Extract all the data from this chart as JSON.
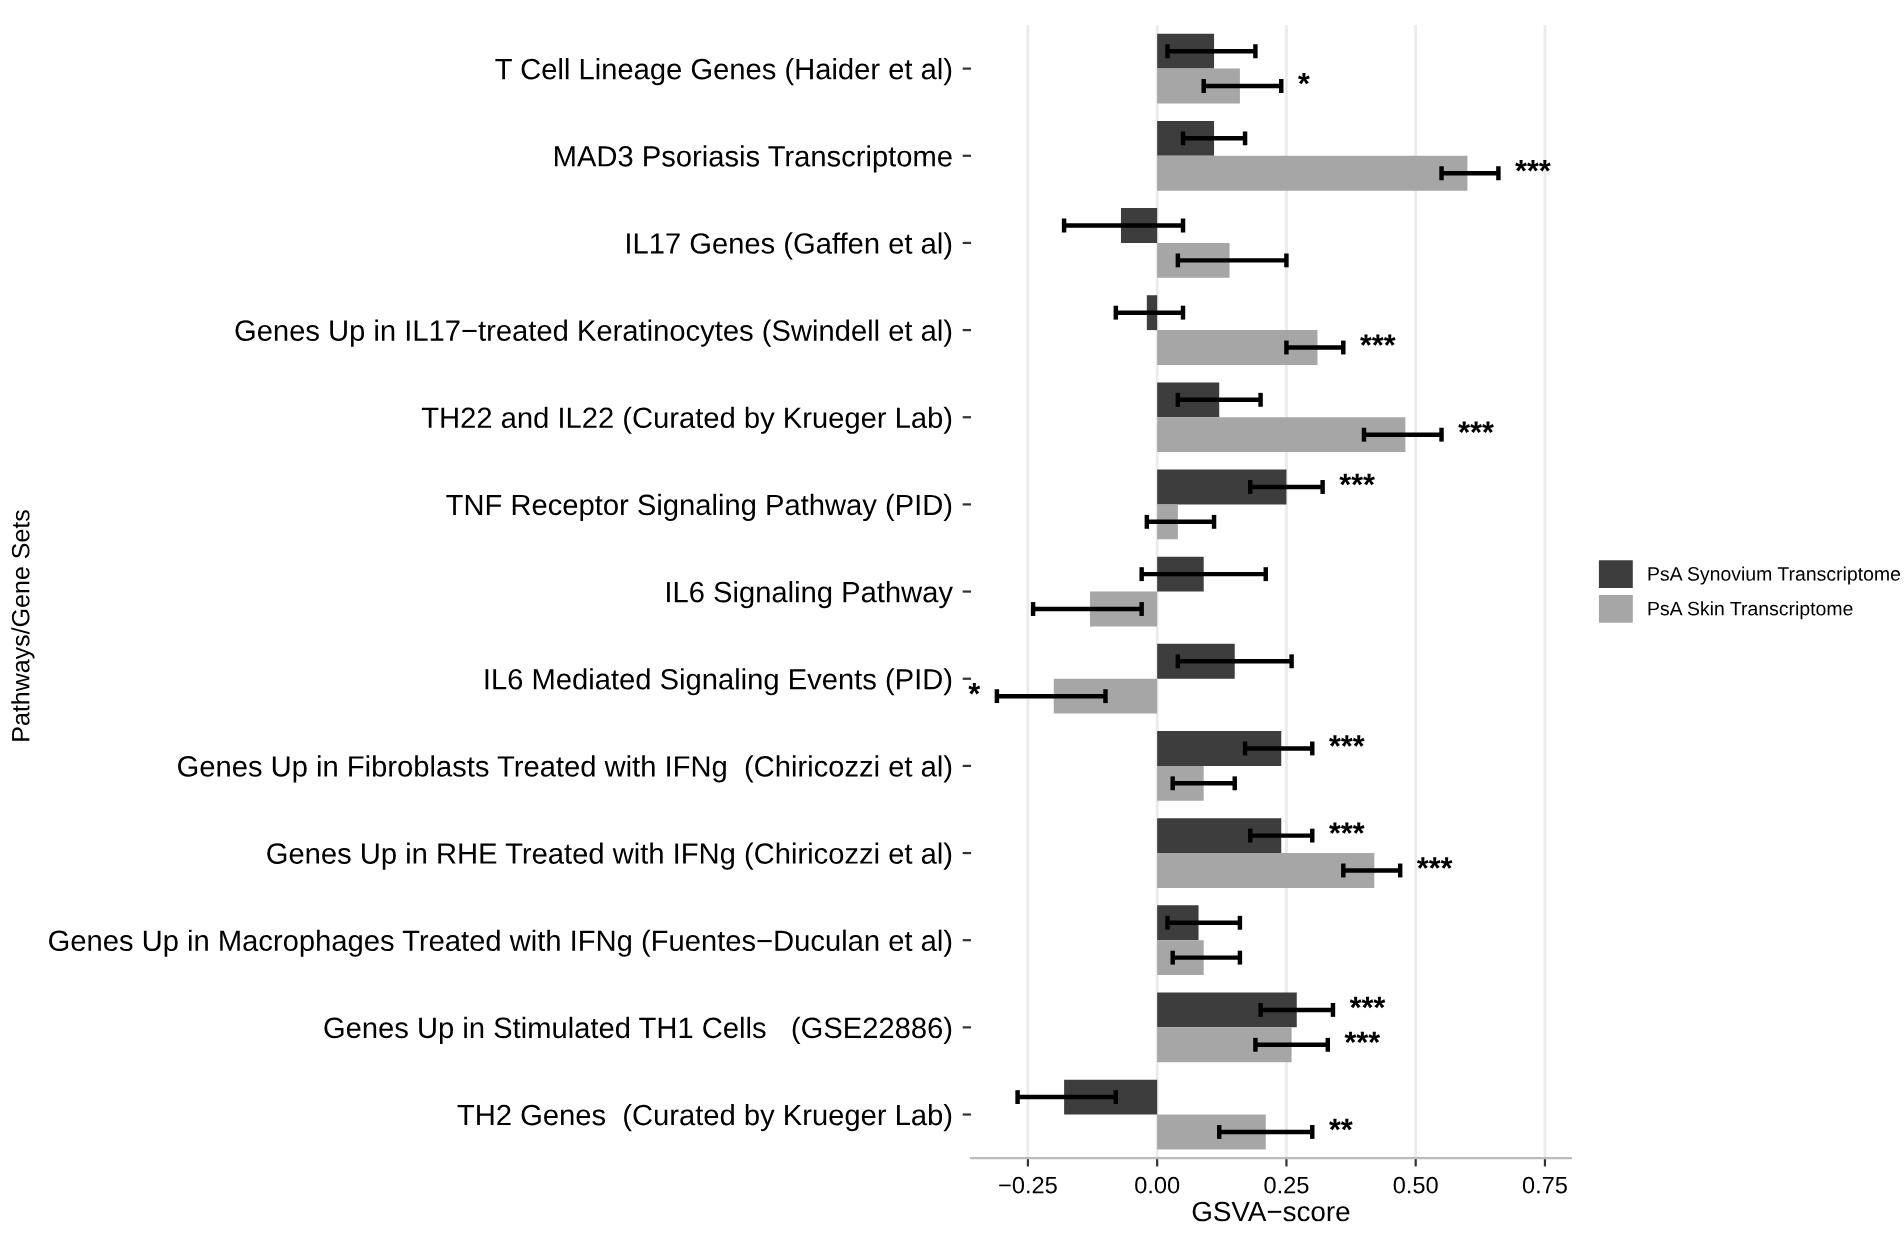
{
  "chart_data": {
    "type": "bar",
    "orientation": "horizontal",
    "xlabel": "GSVA−score",
    "ylabel": "Pathways/Gene Sets",
    "categories": [
      "T Cell Lineage Genes (Haider et al)",
      "MAD3 Psoriasis Transcriptome",
      "IL17 Genes (Gaffen et al)",
      "Genes Up in IL17−treated Keratinocytes (Swindell et al)",
      "TH22 and IL22 (Curated by Krueger Lab)",
      "TNF Receptor Signaling Pathway (PID)",
      "IL6 Signaling Pathway",
      "IL6 Mediated Signaling Events (PID)",
      "Genes Up in Fibroblasts Treated with IFNg  (Chiricozzi et al)",
      "Genes Up in RHE Treated with IFNg (Chiricozzi et al)",
      "Genes Up in Macrophages Treated with IFNg (Fuentes−Duculan et al)",
      "Genes Up in Stimulated TH1 Cells   (GSE22886)",
      "TH2 Genes  (Curated by Krueger Lab)"
    ],
    "series": [
      {
        "name": "PsA Synovium Transcriptome",
        "color": "#3d3d3d",
        "values": [
          0.11,
          0.11,
          -0.07,
          -0.02,
          0.12,
          0.25,
          0.09,
          0.15,
          0.24,
          0.24,
          0.08,
          0.27,
          -0.18
        ],
        "errors": [
          [
            0.02,
            0.19
          ],
          [
            0.05,
            0.17
          ],
          [
            -0.18,
            0.05
          ],
          [
            -0.08,
            0.05
          ],
          [
            0.04,
            0.2
          ],
          [
            0.18,
            0.32
          ],
          [
            -0.03,
            0.21
          ],
          [
            0.04,
            0.26
          ],
          [
            0.17,
            0.3
          ],
          [
            0.18,
            0.3
          ],
          [
            0.02,
            0.16
          ],
          [
            0.2,
            0.34
          ],
          [
            -0.27,
            -0.08
          ]
        ],
        "value_labels": [
          null,
          null,
          null,
          null,
          null,
          "***",
          null,
          null,
          "***",
          "***",
          null,
          "***",
          null
        ]
      },
      {
        "name": "PsA Skin Transcriptome",
        "color": "#a6a6a6",
        "values": [
          0.16,
          0.6,
          0.14,
          0.31,
          0.48,
          0.04,
          -0.13,
          -0.2,
          0.09,
          0.42,
          0.09,
          0.26,
          0.21
        ],
        "errors": [
          [
            0.09,
            0.24
          ],
          [
            0.55,
            0.66
          ],
          [
            0.04,
            0.25
          ],
          [
            0.25,
            0.36
          ],
          [
            0.4,
            0.55
          ],
          [
            -0.02,
            0.11
          ],
          [
            -0.24,
            -0.03
          ],
          [
            -0.31,
            -0.1
          ],
          [
            0.03,
            0.15
          ],
          [
            0.36,
            0.47
          ],
          [
            0.03,
            0.16
          ],
          [
            0.19,
            0.33
          ],
          [
            0.12,
            0.3
          ]
        ],
        "value_labels": [
          "*",
          "***",
          null,
          "***",
          "***",
          null,
          null,
          "*",
          null,
          "***",
          null,
          "***",
          "**"
        ]
      }
    ],
    "xlim": [
      -0.36,
      0.8
    ],
    "xticks": [
      {
        "value": -0.25,
        "label": "−0.25"
      },
      {
        "value": 0,
        "label": "0.00"
      },
      {
        "value": 0.25,
        "label": "0.25"
      },
      {
        "value": 0.5,
        "label": "0.50"
      },
      {
        "value": 0.75,
        "label": "0.75"
      }
    ],
    "grid": "x",
    "legend": "right"
  }
}
